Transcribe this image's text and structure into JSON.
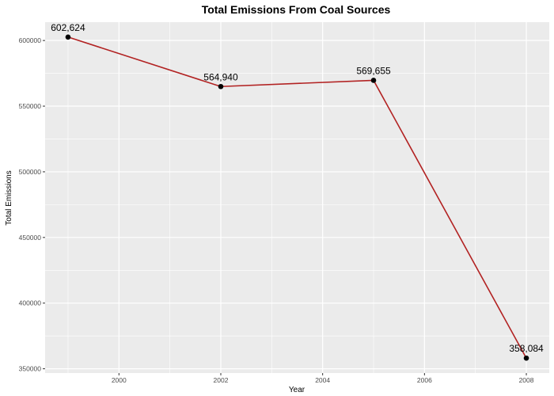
{
  "chart_data": {
    "type": "line",
    "title": "Total Emissions From Coal Sources",
    "xlabel": "Year",
    "ylabel": "Total Emissions",
    "x": [
      1999,
      2002,
      2005,
      2008
    ],
    "values": [
      602624,
      564940,
      569655,
      358084
    ],
    "data_labels": [
      "602,624",
      "564,940",
      "569,655",
      "358,084"
    ],
    "x_ticks": [
      2000,
      2002,
      2004,
      2006,
      2008
    ],
    "x_tick_labels": [
      "2000",
      "2002",
      "2004",
      "2006",
      "2008"
    ],
    "y_ticks": [
      350000,
      400000,
      450000,
      500000,
      550000,
      600000
    ],
    "y_tick_labels": [
      "350000",
      "400000",
      "450000",
      "500000",
      "550000",
      "600000"
    ],
    "xlim": [
      1998.55,
      2008.45
    ],
    "ylim": [
      346757,
      613951
    ],
    "grid": true,
    "legend": "none",
    "colors": {
      "line": "#b22222",
      "point": "#000000",
      "panel": "#ebebeb",
      "grid": "#ffffff"
    }
  }
}
